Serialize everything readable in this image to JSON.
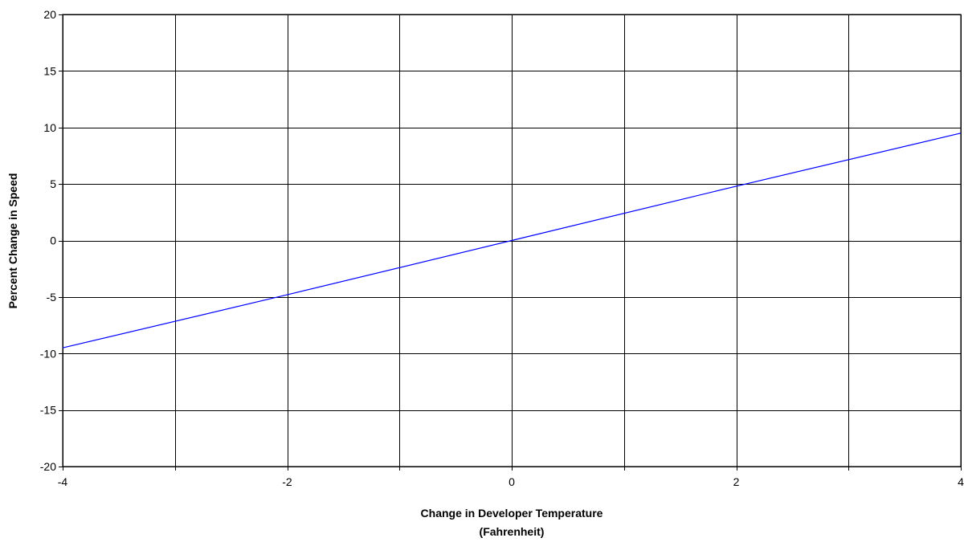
{
  "chart_data": {
    "type": "line",
    "xlabel_lines": [
      "Change in Developer Temperature",
      "(Fahrenheit)"
    ],
    "ylabel": "Percent Change in Speed",
    "xlim": [
      -4,
      4
    ],
    "ylim": [
      -20,
      20
    ],
    "x_ticks": [
      -4,
      -3,
      -2,
      -1,
      0,
      1,
      2,
      3,
      4
    ],
    "x_tick_labels": [
      "-4",
      "",
      "-2",
      "",
      "0",
      "",
      "2",
      "",
      "4"
    ],
    "y_ticks": [
      -20,
      -15,
      -10,
      -5,
      0,
      5,
      10,
      15,
      20
    ],
    "y_tick_labels": [
      "-20",
      "-15",
      "-10",
      "-5",
      "0",
      "5",
      "10",
      "15",
      "20"
    ],
    "grid": true,
    "legend": "none",
    "series": [
      {
        "color": "#0000ff",
        "x": [
          -4,
          -2,
          0,
          2,
          4
        ],
        "y": [
          -9.5,
          -4.8,
          0,
          4.8,
          9.5
        ]
      }
    ],
    "colors": {
      "grid": "#000000",
      "background": "#ffffff",
      "line": "#0000ff"
    }
  }
}
